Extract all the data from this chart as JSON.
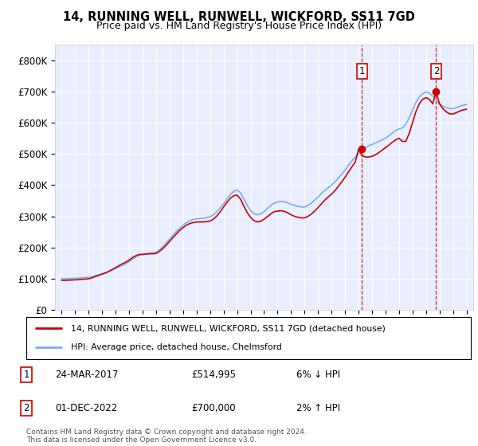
{
  "title": "14, RUNNING WELL, RUNWELL, WICKFORD, SS11 7GD",
  "subtitle": "Price paid vs. HM Land Registry's House Price Index (HPI)",
  "ylim": [
    0,
    850000
  ],
  "yticks": [
    0,
    100000,
    200000,
    300000,
    400000,
    500000,
    600000,
    700000,
    800000
  ],
  "ytick_labels": [
    "£0",
    "£100K",
    "£200K",
    "£300K",
    "£400K",
    "£500K",
    "£600K",
    "£700K",
    "£800K"
  ],
  "background_color": "#ffffff",
  "plot_bg_color": "#e8eeff",
  "grid_color": "#ffffff",
  "hpi_color": "#7aacf0",
  "price_color": "#cc0000",
  "sale1_date": "24-MAR-2017",
  "sale1_price": 514995,
  "sale1_pct": "6% ↓ HPI",
  "sale2_date": "01-DEC-2022",
  "sale2_price": 700000,
  "sale2_pct": "2% ↑ HPI",
  "legend_label_red": "14, RUNNING WELL, RUNWELL, WICKFORD, SS11 7GD (detached house)",
  "legend_label_blue": "HPI: Average price, detached house, Chelmsford",
  "footer": "Contains HM Land Registry data © Crown copyright and database right 2024.\nThis data is licensed under the Open Government Licence v3.0.",
  "hpi_x": [
    1995.0,
    1995.25,
    1995.5,
    1995.75,
    1996.0,
    1996.25,
    1996.5,
    1996.75,
    1997.0,
    1997.25,
    1997.5,
    1997.75,
    1998.0,
    1998.25,
    1998.5,
    1998.75,
    1999.0,
    1999.25,
    1999.5,
    1999.75,
    2000.0,
    2000.25,
    2000.5,
    2000.75,
    2001.0,
    2001.25,
    2001.5,
    2001.75,
    2002.0,
    2002.25,
    2002.5,
    2002.75,
    2003.0,
    2003.25,
    2003.5,
    2003.75,
    2004.0,
    2004.25,
    2004.5,
    2004.75,
    2005.0,
    2005.25,
    2005.5,
    2005.75,
    2006.0,
    2006.25,
    2006.5,
    2006.75,
    2007.0,
    2007.25,
    2007.5,
    2007.75,
    2008.0,
    2008.25,
    2008.5,
    2008.75,
    2009.0,
    2009.25,
    2009.5,
    2009.75,
    2010.0,
    2010.25,
    2010.5,
    2010.75,
    2011.0,
    2011.25,
    2011.5,
    2011.75,
    2012.0,
    2012.25,
    2012.5,
    2012.75,
    2013.0,
    2013.25,
    2013.5,
    2013.75,
    2014.0,
    2014.25,
    2014.5,
    2014.75,
    2015.0,
    2015.25,
    2015.5,
    2015.75,
    2016.0,
    2016.25,
    2016.5,
    2016.75,
    2017.0,
    2017.25,
    2017.5,
    2017.75,
    2018.0,
    2018.25,
    2018.5,
    2018.75,
    2019.0,
    2019.25,
    2019.5,
    2019.75,
    2020.0,
    2020.25,
    2020.5,
    2020.75,
    2021.0,
    2021.25,
    2021.5,
    2021.75,
    2022.0,
    2022.25,
    2022.5,
    2022.75,
    2023.0,
    2023.25,
    2023.5,
    2023.75,
    2024.0,
    2024.25,
    2024.5,
    2024.75,
    2025.0
  ],
  "hpi_y": [
    100000,
    100000,
    100500,
    101000,
    101500,
    102000,
    103000,
    104000,
    105000,
    107000,
    110000,
    113000,
    116000,
    119000,
    123000,
    128000,
    133000,
    138000,
    143000,
    148000,
    155000,
    163000,
    170000,
    175000,
    178000,
    180000,
    182000,
    183000,
    185000,
    193000,
    203000,
    215000,
    227000,
    240000,
    252000,
    262000,
    272000,
    280000,
    286000,
    290000,
    292000,
    293000,
    294000,
    296000,
    299000,
    305000,
    315000,
    328000,
    340000,
    355000,
    370000,
    380000,
    385000,
    375000,
    355000,
    335000,
    318000,
    308000,
    305000,
    308000,
    315000,
    325000,
    335000,
    342000,
    346000,
    348000,
    347000,
    343000,
    338000,
    335000,
    332000,
    330000,
    330000,
    335000,
    342000,
    352000,
    362000,
    373000,
    383000,
    392000,
    400000,
    410000,
    422000,
    435000,
    448000,
    463000,
    477000,
    490000,
    500000,
    510000,
    519000,
    526000,
    530000,
    535000,
    540000,
    545000,
    550000,
    558000,
    567000,
    575000,
    580000,
    583000,
    595000,
    615000,
    640000,
    665000,
    682000,
    693000,
    698000,
    695000,
    685000,
    672000,
    660000,
    653000,
    648000,
    645000,
    645000,
    648000,
    652000,
    656000,
    658000
  ],
  "red_x": [
    1995.0,
    1995.25,
    1995.5,
    1995.75,
    1996.0,
    1996.25,
    1996.5,
    1996.75,
    1997.0,
    1997.25,
    1997.5,
    1997.75,
    1998.0,
    1998.25,
    1998.5,
    1998.75,
    1999.0,
    1999.25,
    1999.5,
    1999.75,
    2000.0,
    2000.25,
    2000.5,
    2000.75,
    2001.0,
    2001.25,
    2001.5,
    2001.75,
    2002.0,
    2002.25,
    2002.5,
    2002.75,
    2003.0,
    2003.25,
    2003.5,
    2003.75,
    2004.0,
    2004.25,
    2004.5,
    2004.75,
    2005.0,
    2005.25,
    2005.5,
    2005.75,
    2006.0,
    2006.25,
    2006.5,
    2006.75,
    2007.0,
    2007.25,
    2007.5,
    2007.75,
    2008.0,
    2008.25,
    2008.5,
    2008.75,
    2009.0,
    2009.25,
    2009.5,
    2009.75,
    2010.0,
    2010.25,
    2010.5,
    2010.75,
    2011.0,
    2011.25,
    2011.5,
    2011.75,
    2012.0,
    2012.25,
    2012.5,
    2012.75,
    2013.0,
    2013.25,
    2013.5,
    2013.75,
    2014.0,
    2014.25,
    2014.5,
    2014.75,
    2015.0,
    2015.25,
    2015.5,
    2015.75,
    2016.0,
    2016.25,
    2016.5,
    2016.75,
    2017.0,
    2017.25,
    2017.5,
    2017.75,
    2018.0,
    2018.25,
    2018.5,
    2018.75,
    2019.0,
    2019.25,
    2019.5,
    2019.75,
    2020.0,
    2020.25,
    2020.5,
    2020.75,
    2021.0,
    2021.25,
    2021.5,
    2021.75,
    2022.0,
    2022.25,
    2022.5,
    2022.75,
    2023.0,
    2023.25,
    2023.5,
    2023.75,
    2024.0,
    2024.25,
    2024.5,
    2024.75,
    2025.0
  ],
  "red_y": [
    95000,
    95000,
    95500,
    96000,
    96500,
    97000,
    98000,
    99000,
    100000,
    103000,
    107000,
    111000,
    115000,
    119000,
    124000,
    130000,
    136000,
    142000,
    148000,
    153000,
    160000,
    168000,
    174000,
    178000,
    178000,
    179000,
    180000,
    180000,
    181000,
    188000,
    197000,
    208000,
    220000,
    232000,
    244000,
    255000,
    264000,
    272000,
    277000,
    280000,
    282000,
    282000,
    282000,
    283000,
    285000,
    291000,
    301000,
    315000,
    330000,
    345000,
    358000,
    366000,
    368000,
    355000,
    333000,
    312000,
    296000,
    286000,
    282000,
    284000,
    291000,
    299000,
    308000,
    315000,
    317000,
    318000,
    316000,
    311000,
    305000,
    300000,
    297000,
    295000,
    295000,
    300000,
    307000,
    317000,
    328000,
    340000,
    352000,
    362000,
    371000,
    382000,
    396000,
    410000,
    425000,
    442000,
    458000,
    473000,
    514995,
    495000,
    490000,
    490000,
    492000,
    497000,
    504000,
    512000,
    520000,
    528000,
    537000,
    545000,
    550000,
    540000,
    540000,
    565000,
    600000,
    635000,
    660000,
    675000,
    680000,
    675000,
    660000,
    700000,
    660000,
    645000,
    635000,
    628000,
    628000,
    632000,
    637000,
    641000,
    643000
  ],
  "sale1_x": 2017.25,
  "sale2_x": 2022.75,
  "xlim": [
    1994.5,
    2025.5
  ],
  "xtick_years": [
    1995,
    1996,
    1997,
    1998,
    1999,
    2000,
    2001,
    2002,
    2003,
    2004,
    2005,
    2006,
    2007,
    2008,
    2009,
    2010,
    2011,
    2012,
    2013,
    2014,
    2015,
    2016,
    2017,
    2018,
    2019,
    2020,
    2021,
    2022,
    2023,
    2024,
    2025
  ]
}
